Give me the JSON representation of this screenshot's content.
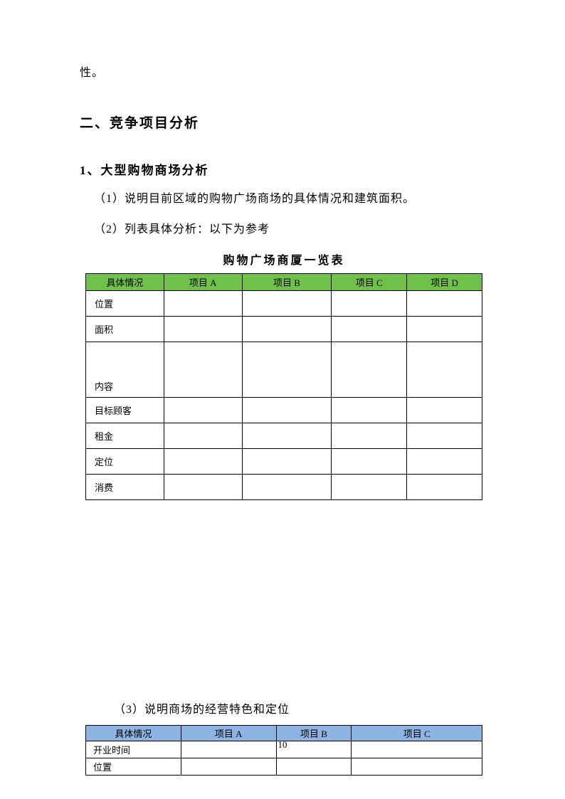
{
  "fragment": "性。",
  "section_heading": "二、竞争项目分析",
  "sub_heading": "1、大型购物商场分析",
  "body_line1": "（1）说明目前区域的购物广场商场的具体情况和建筑面积。",
  "body_line2": "（2）列表具体分析：以下为参考",
  "table1": {
    "title": "购物广场商厦一览表",
    "headers": [
      "具体情况",
      "项目 A",
      "项目 B",
      "项目 C",
      "项目 D"
    ],
    "rows": [
      "位置",
      "面积",
      "内容",
      "目标顾客",
      "租金",
      "定位",
      "消费"
    ],
    "tall_row_index": 2,
    "header_bg": "#70c14a"
  },
  "section3_text": "（3）说明商场的经营特色和定位",
  "table2": {
    "headers": [
      "具体情况",
      "项目 A",
      "项目 B",
      "项目 C"
    ],
    "rows": [
      "开业时间",
      "位置"
    ],
    "header_bg": "#8db4e2"
  },
  "page_number": "10"
}
